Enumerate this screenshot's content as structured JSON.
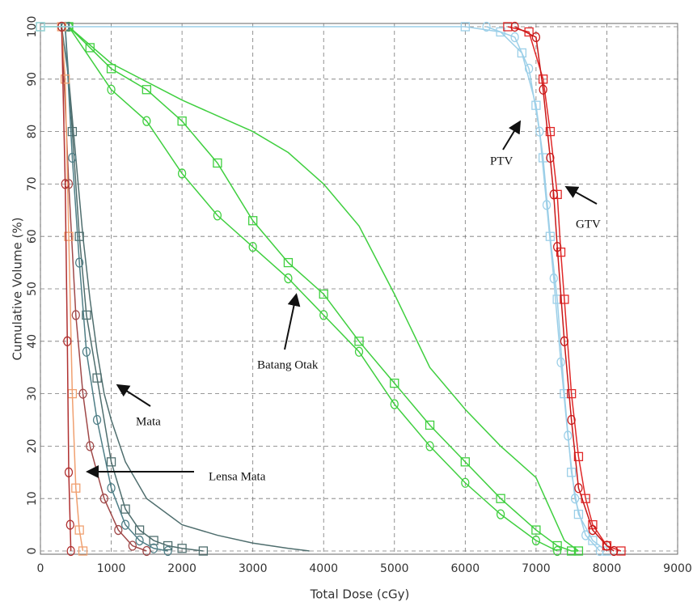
{
  "chart_data": {
    "type": "line",
    "x_label": "Total Dose (cGy)",
    "y_label": "Cumulative Volume (%)",
    "xlim": [
      0,
      9000
    ],
    "ylim": [
      0,
      100
    ],
    "xticks": [
      0,
      1000,
      2000,
      3000,
      4000,
      5000,
      6000,
      7000,
      8000,
      9000
    ],
    "yticks": [
      0,
      10,
      20,
      30,
      40,
      50,
      60,
      70,
      80,
      90,
      100
    ],
    "grid": true,
    "annotations": [
      "PTV",
      "GTV",
      "Batang Otak",
      "Mata",
      "Lensa Mata"
    ],
    "series": [
      {
        "color": "#3fcf3f",
        "marker": "square",
        "x": [
          0,
          400,
          700,
          1000,
          1500,
          2000,
          2500,
          3000,
          3500,
          4000,
          4500,
          5000,
          5500,
          6000,
          6500,
          7000,
          7300,
          7500,
          7600
        ],
        "values": [
          100,
          100,
          96,
          92,
          88,
          82,
          74,
          63,
          55,
          49,
          40,
          32,
          24,
          17,
          10,
          4,
          1,
          0,
          0
        ]
      },
      {
        "color": "#3fcf3f",
        "marker": "circle",
        "x": [
          400,
          1000,
          1500,
          2000,
          2500,
          3000,
          3500,
          4000,
          4500,
          5000,
          5500,
          6000,
          6500,
          7000,
          7300
        ],
        "values": [
          100,
          88,
          82,
          72,
          64,
          58,
          52,
          45,
          38,
          28,
          20,
          13,
          7,
          2,
          0
        ]
      },
      {
        "color": "#3fcf3f",
        "marker": null,
        "x": [
          400,
          1000,
          2000,
          3000,
          3500,
          4000,
          4500,
          5000,
          5500,
          6000,
          6500,
          7000,
          7200,
          7400,
          7600
        ],
        "values": [
          100,
          93,
          86,
          80,
          76,
          70,
          62,
          49,
          35,
          27,
          20,
          14,
          8,
          2,
          0
        ]
      },
      {
        "color": "#4f6e6e",
        "marker": null,
        "x": [
          300,
          400,
          500,
          600,
          700,
          800,
          900,
          1000,
          1200,
          1500,
          2000,
          2500,
          3000,
          3500,
          3800
        ],
        "values": [
          100,
          90,
          75,
          60,
          48,
          38,
          30,
          25,
          17,
          10,
          5,
          3,
          1.5,
          0.5,
          0
        ]
      },
      {
        "color": "#4f6e6e",
        "marker": "square",
        "x": [
          350,
          450,
          550,
          650,
          800,
          1000,
          1200,
          1400,
          1600,
          1800,
          2000,
          2300
        ],
        "values": [
          100,
          80,
          60,
          45,
          33,
          17,
          8,
          4,
          2,
          1,
          0.5,
          0
        ]
      },
      {
        "color": "#4f7e86",
        "marker": "circle",
        "x": [
          350,
          450,
          550,
          650,
          800,
          1000,
          1200,
          1400,
          1600,
          1800
        ],
        "values": [
          100,
          75,
          55,
          38,
          25,
          12,
          5,
          2,
          0.5,
          0
        ]
      },
      {
        "color": "#a04848",
        "marker": "circle",
        "x": [
          300,
          400,
          500,
          600,
          700,
          900,
          1100,
          1300,
          1500
        ],
        "values": [
          100,
          70,
          45,
          30,
          20,
          10,
          4,
          1,
          0
        ]
      },
      {
        "color": "#f0a070",
        "marker": "square",
        "x": [
          300,
          350,
          400,
          450,
          500,
          550,
          600
        ],
        "values": [
          100,
          90,
          60,
          30,
          12,
          4,
          0
        ]
      },
      {
        "color": "#b03030",
        "marker": "circle",
        "x": [
          300,
          350,
          380,
          400,
          420,
          430
        ],
        "values": [
          100,
          70,
          40,
          15,
          5,
          0
        ]
      },
      {
        "color": "#9ccfe8",
        "marker": "square",
        "x": [
          0,
          6000,
          6500,
          6800,
          7000,
          7100,
          7200,
          7300,
          7400,
          7500,
          7600,
          7800,
          8000
        ],
        "values": [
          100,
          100,
          99,
          95,
          85,
          75,
          60,
          48,
          30,
          15,
          7,
          2,
          0
        ]
      },
      {
        "color": "#9ccfe8",
        "marker": "circle",
        "x": [
          6300,
          6700,
          6900,
          7050,
          7150,
          7250,
          7350,
          7450,
          7550,
          7700,
          7900
        ],
        "values": [
          100,
          98,
          92,
          80,
          66,
          52,
          36,
          22,
          10,
          3,
          0
        ]
      },
      {
        "color": "#e02828",
        "marker": "square",
        "x": [
          6600,
          6900,
          7100,
          7200,
          7300,
          7350,
          7400,
          7500,
          7600,
          7700,
          7800,
          8000,
          8200
        ],
        "values": [
          100,
          99,
          90,
          80,
          68,
          57,
          48,
          30,
          18,
          10,
          5,
          1,
          0
        ]
      },
      {
        "color": "#c81818",
        "marker": "circle",
        "x": [
          6700,
          7000,
          7100,
          7200,
          7250,
          7300,
          7400,
          7500,
          7600,
          7800,
          8000,
          8100
        ],
        "values": [
          100,
          98,
          88,
          75,
          68,
          58,
          40,
          25,
          12,
          4,
          1,
          0
        ]
      }
    ]
  }
}
